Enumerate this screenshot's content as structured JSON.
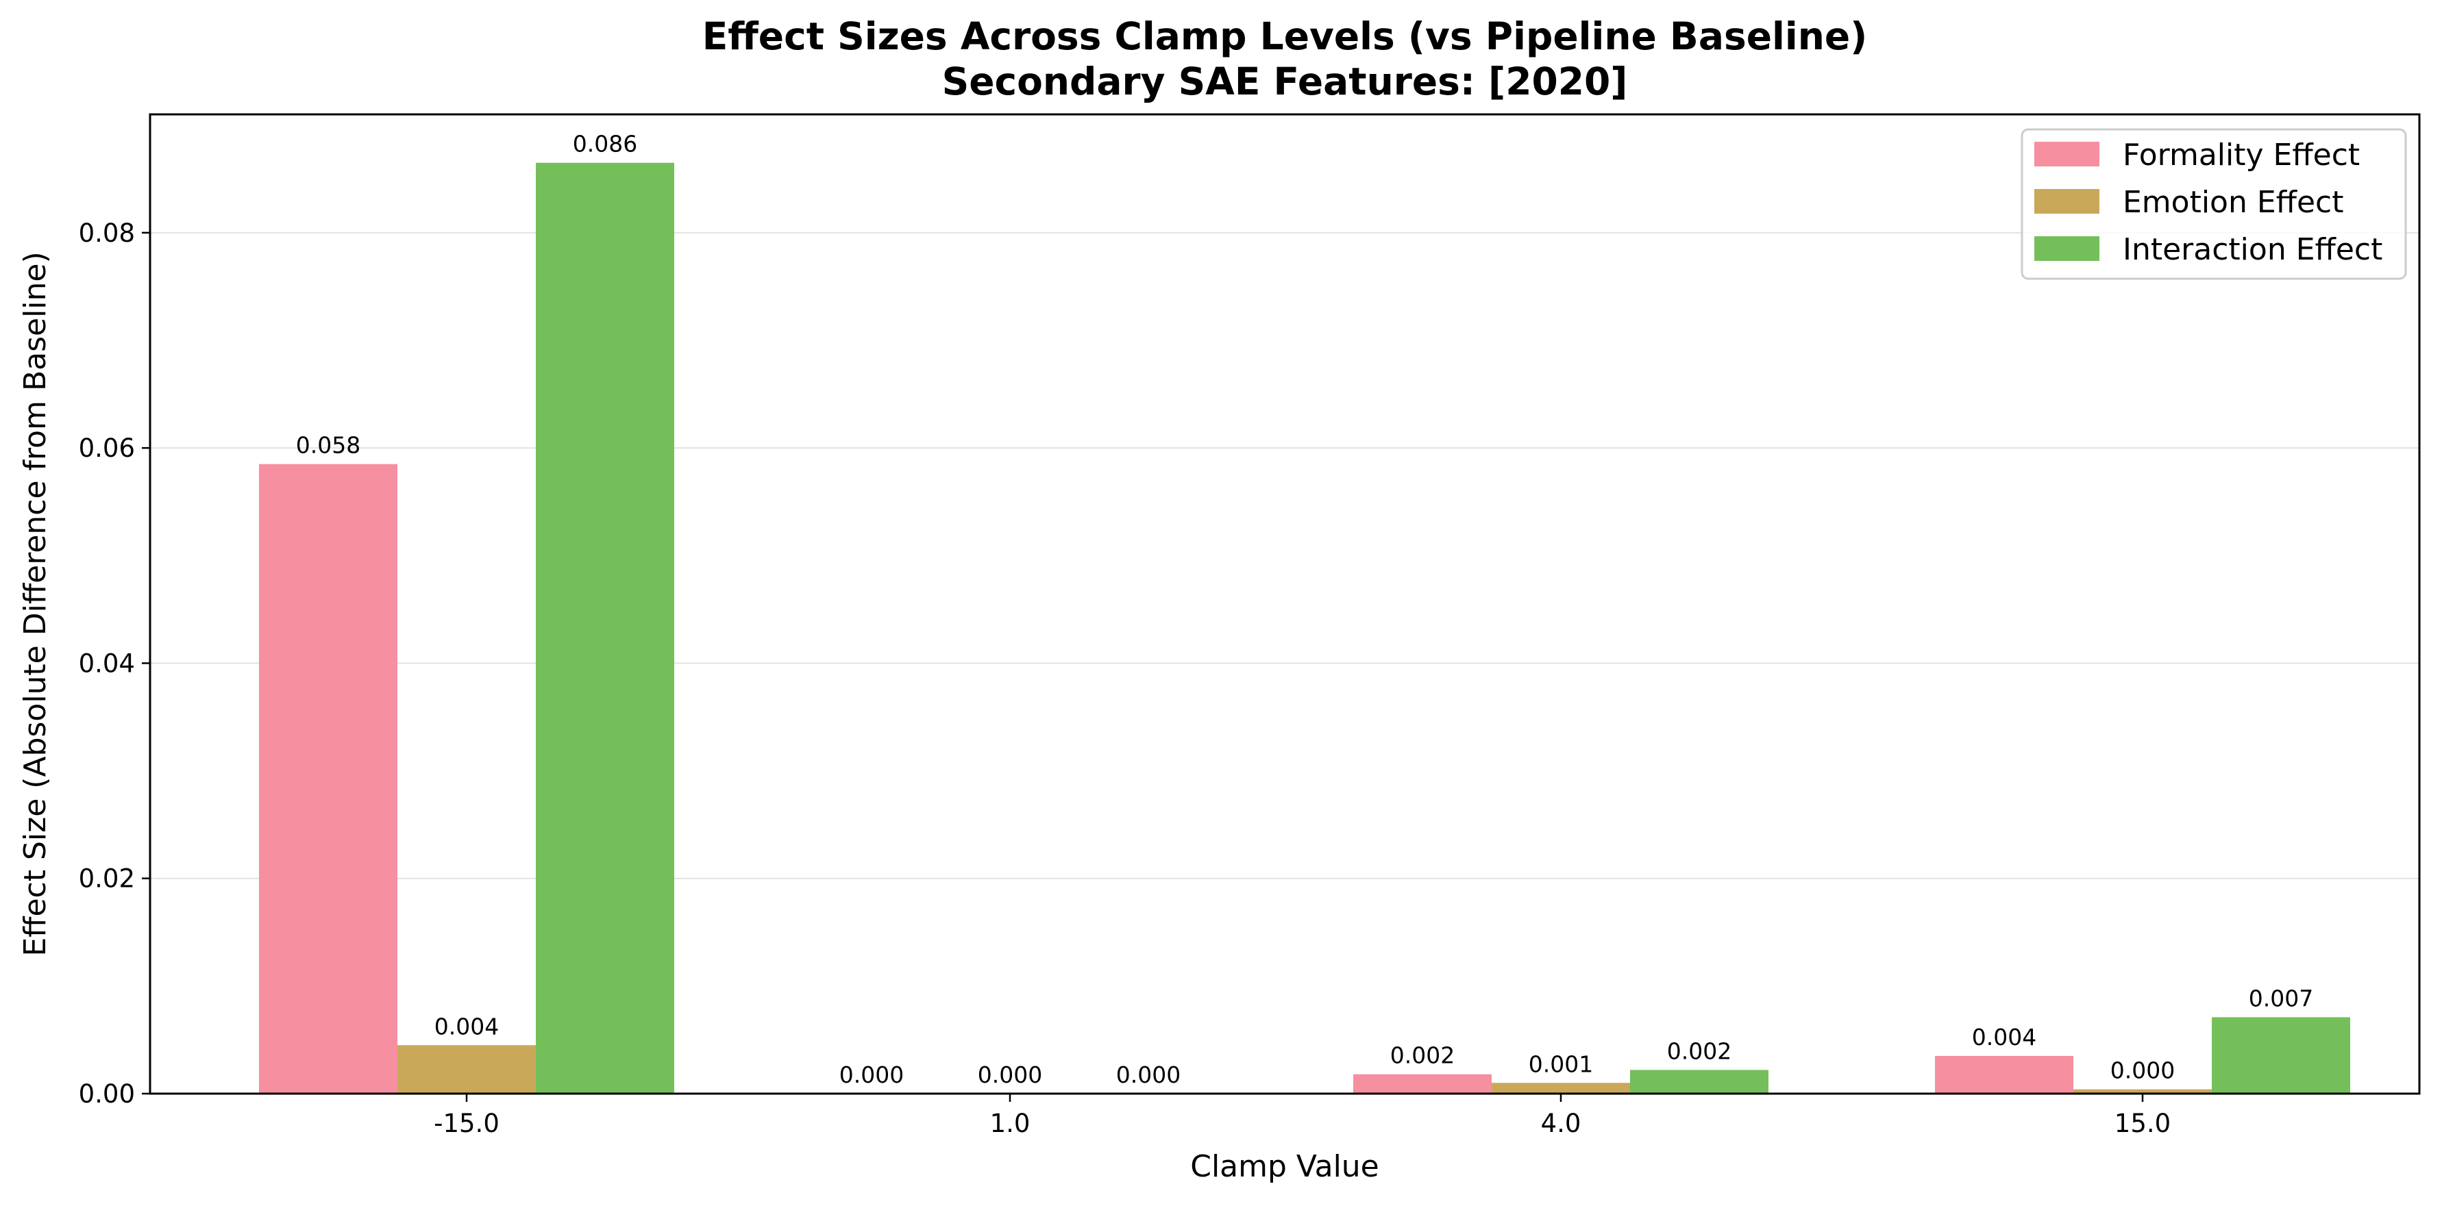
{
  "chart_data": {
    "type": "bar",
    "title": "Effect Sizes Across Clamp Levels (vs Pipeline Baseline)",
    "subtitle": "Secondary SAE Features: [2020]",
    "xlabel": "Clamp Value",
    "ylabel": "Effect Size (Absolute Difference from Baseline)",
    "categories": [
      "-15.0",
      "1.0",
      "4.0",
      "15.0"
    ],
    "ylim": [
      0,
      0.091
    ],
    "yticks": [
      0.0,
      0.02,
      0.04,
      0.06,
      0.08
    ],
    "ytick_labels": [
      "0.00",
      "0.02",
      "0.04",
      "0.06",
      "0.08"
    ],
    "grid": "horizontal",
    "legend_position": "top-right",
    "series": [
      {
        "name": "Formality Effect",
        "color": "#f68f9f",
        "values": [
          0.0585,
          0.0,
          0.0018,
          0.0035
        ],
        "labels": [
          "0.058",
          "0.000",
          "0.002",
          "0.004"
        ]
      },
      {
        "name": "Emotion Effect",
        "color": "#c9a85a",
        "values": [
          0.0045,
          0.0,
          0.001,
          0.0004
        ],
        "labels": [
          "0.004",
          "0.000",
          "0.001",
          "0.000"
        ]
      },
      {
        "name": "Interaction Effect",
        "color": "#74bf5a",
        "values": [
          0.0865,
          0.0,
          0.0022,
          0.0071
        ],
        "labels": [
          "0.086",
          "0.000",
          "0.002",
          "0.007"
        ]
      }
    ]
  }
}
